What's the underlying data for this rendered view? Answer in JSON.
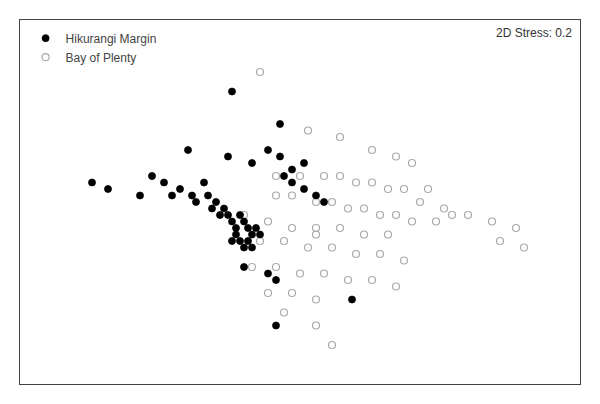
{
  "chart_data": {
    "type": "scatter",
    "annotation": "2D Stress: 0.2",
    "series": [
      {
        "name": "Hikurangi Margin",
        "color": "#000000",
        "marker": "circle",
        "x": [
          -0.05,
          0.07,
          -0.16,
          -0.06,
          0.0,
          0.04,
          0.07,
          0.1,
          0.13,
          -0.4,
          -0.36,
          -0.28,
          -0.25,
          -0.22,
          -0.2,
          -0.18,
          -0.15,
          -0.14,
          -0.12,
          -0.11,
          -0.1,
          -0.09,
          -0.08,
          -0.07,
          -0.06,
          -0.05,
          -0.04,
          -0.03,
          -0.02,
          -0.01,
          0.0,
          0.01,
          0.02,
          -0.05,
          -0.04,
          -0.03,
          -0.02,
          -0.01,
          0.0,
          0.08,
          0.1,
          0.13,
          0.16,
          0.18,
          -0.02,
          0.04,
          0.06,
          0.25,
          0.06
        ],
        "values": [
          0.38,
          0.28,
          0.2,
          0.18,
          0.16,
          0.2,
          0.18,
          0.14,
          0.16,
          0.1,
          0.08,
          0.06,
          0.12,
          0.1,
          0.06,
          0.08,
          0.06,
          0.04,
          0.1,
          0.06,
          0.02,
          0.04,
          0.0,
          0.02,
          0.0,
          -0.02,
          -0.04,
          0.0,
          -0.02,
          -0.04,
          -0.06,
          -0.04,
          -0.06,
          -0.08,
          -0.06,
          -0.08,
          -0.1,
          -0.08,
          -0.1,
          0.12,
          0.1,
          0.08,
          0.06,
          0.04,
          -0.16,
          -0.18,
          -0.2,
          -0.26,
          -0.34
        ]
      },
      {
        "name": "Bay of Plenty",
        "color": "#aaaaaa",
        "marker": "circle-open",
        "x": [
          0.02,
          0.14,
          0.22,
          0.3,
          0.36,
          0.4,
          0.06,
          0.12,
          0.18,
          0.22,
          0.26,
          0.3,
          0.34,
          0.38,
          0.44,
          0.06,
          0.1,
          0.16,
          0.2,
          0.24,
          0.28,
          0.32,
          0.36,
          0.4,
          0.46,
          0.5,
          0.16,
          0.22,
          0.28,
          0.34,
          -0.02,
          0.04,
          0.1,
          0.16,
          0.02,
          0.08,
          0.14,
          0.2,
          0.26,
          0.32,
          0.38,
          0.42,
          0.48,
          0.54,
          0.6,
          0.66,
          0.0,
          0.06,
          0.12,
          0.18,
          0.24,
          0.3,
          0.36,
          0.04,
          0.1,
          0.16,
          0.08,
          0.16,
          0.2,
          0.62,
          0.68
        ],
        "values": [
          0.44,
          0.26,
          0.24,
          0.2,
          0.18,
          0.16,
          0.12,
          0.12,
          0.12,
          0.12,
          0.1,
          0.1,
          0.08,
          0.08,
          0.08,
          0.06,
          0.06,
          0.04,
          0.04,
          0.02,
          0.02,
          0.0,
          0.0,
          -0.02,
          -0.02,
          0.0,
          -0.04,
          -0.04,
          -0.06,
          -0.06,
          0.0,
          -0.02,
          -0.04,
          -0.06,
          -0.08,
          -0.08,
          -0.1,
          -0.1,
          -0.12,
          -0.12,
          -0.14,
          0.04,
          0.02,
          0.0,
          -0.02,
          -0.04,
          -0.16,
          -0.16,
          -0.18,
          -0.18,
          -0.2,
          -0.2,
          -0.22,
          -0.24,
          -0.24,
          -0.26,
          -0.3,
          -0.34,
          -0.4,
          -0.08,
          -0.1
        ]
      }
    ],
    "xlim": [
      -0.58,
      0.82
    ],
    "ylim": [
      -0.52,
      0.6
    ],
    "legend": "upper left",
    "grid": false,
    "tick_labels": false
  }
}
